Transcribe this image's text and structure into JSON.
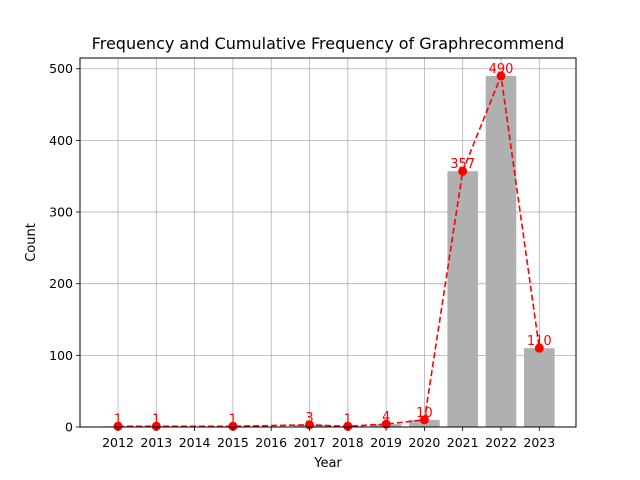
{
  "chart_data": {
    "type": "bar",
    "title": "Frequency and Cumulative Frequency of Graphrecommend",
    "xlabel": "Year",
    "ylabel": "Count",
    "categories": [
      "2012",
      "2013",
      "2014",
      "2015",
      "2016",
      "2017",
      "2018",
      "2019",
      "2020",
      "2021",
      "2022",
      "2023"
    ],
    "bar_values": [
      1,
      1,
      0,
      1,
      0,
      3,
      1,
      4,
      10,
      357,
      490,
      110
    ],
    "line_points": [
      {
        "x": "2012",
        "y": 1
      },
      {
        "x": "2013",
        "y": 1
      },
      {
        "x": "2015",
        "y": 1
      },
      {
        "x": "2017",
        "y": 3
      },
      {
        "x": "2018",
        "y": 1
      },
      {
        "x": "2019",
        "y": 4
      },
      {
        "x": "2020",
        "y": 10
      },
      {
        "x": "2021",
        "y": 357
      },
      {
        "x": "2022",
        "y": 490
      },
      {
        "x": "2023",
        "y": 110
      }
    ],
    "data_labels": [
      "1",
      "1",
      "1",
      "3",
      "1",
      "4",
      "10",
      "357",
      "490",
      "110"
    ],
    "ylim": [
      0,
      515
    ],
    "yticks": [
      0,
      100,
      200,
      300,
      400,
      500
    ],
    "grid": true,
    "bar_color": "#b0b0b0",
    "line_color": "#ff0000",
    "line_style": "dashed"
  }
}
